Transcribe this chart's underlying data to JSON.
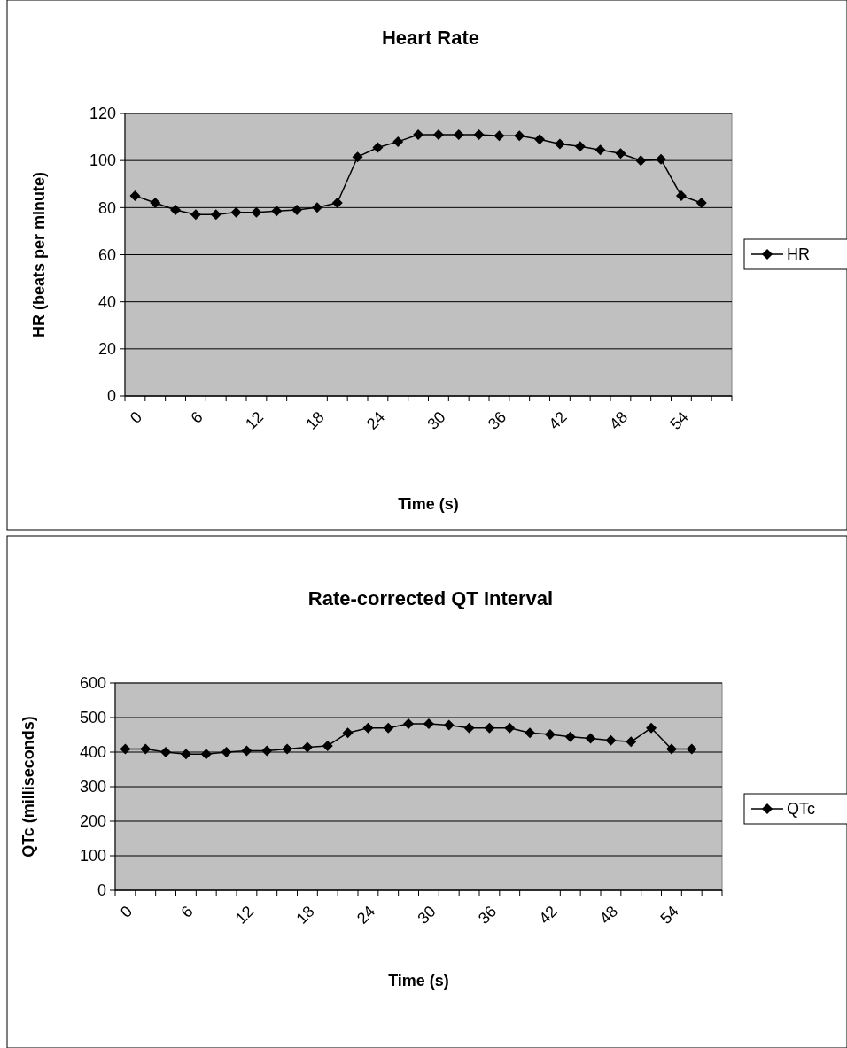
{
  "chart_data": [
    {
      "type": "line",
      "title": "Heart Rate",
      "xlabel": "Time (s)",
      "ylabel": "HR (beats per minute)",
      "categories": [
        "0",
        null,
        null,
        "6",
        null,
        null,
        "12",
        null,
        null,
        "18",
        null,
        null,
        "24",
        null,
        null,
        "30",
        null,
        null,
        "36",
        null,
        null,
        "42",
        null,
        null,
        "48",
        null,
        null,
        "54",
        null,
        null
      ],
      "series": [
        {
          "name": "HR",
          "color": "#000000",
          "values": [
            85,
            82,
            79,
            77,
            77,
            78,
            78,
            78.5,
            79,
            80,
            82,
            101.5,
            105.5,
            108,
            111,
            111,
            111,
            111,
            110.5,
            110.5,
            109,
            107,
            106,
            104.5,
            103,
            100,
            100.5,
            85,
            82,
            null
          ]
        }
      ],
      "ylim": [
        0,
        120
      ],
      "yticks": [
        0,
        20,
        40,
        60,
        80,
        100,
        120
      ],
      "grid": "y",
      "legend": "right",
      "marker": "diamond"
    },
    {
      "type": "line",
      "title": "Rate-corrected QT Interval",
      "xlabel": "Time (s)",
      "ylabel": "QTc (milliseconds)",
      "categories": [
        "0",
        null,
        null,
        "6",
        null,
        null,
        "12",
        null,
        null,
        "18",
        null,
        null,
        "24",
        null,
        null,
        "30",
        null,
        null,
        "36",
        null,
        null,
        "42",
        null,
        null,
        "48",
        null,
        null,
        "54",
        null,
        null
      ],
      "series": [
        {
          "name": "QTc",
          "color": "#000000",
          "values": [
            409,
            409,
            400,
            394,
            394,
            400,
            404,
            404,
            409,
            414,
            418,
            456,
            470,
            470,
            482,
            482,
            478,
            470,
            470,
            470,
            456,
            451,
            444,
            440,
            434,
            430,
            470,
            409,
            409,
            null
          ]
        }
      ],
      "ylim": [
        0,
        600
      ],
      "yticks": [
        0,
        100,
        200,
        300,
        400,
        500,
        600
      ],
      "grid": "y",
      "legend": "right",
      "marker": "diamond"
    }
  ]
}
